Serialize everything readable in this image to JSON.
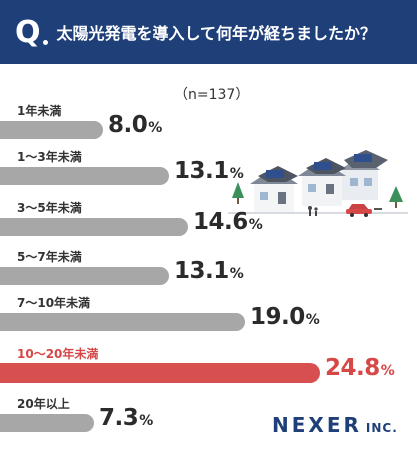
{
  "header": {
    "q_mark": "Q",
    "question": "太陽光発電を導入して何年が経ちましたか？"
  },
  "note": "（n=137）",
  "logo": {
    "main": "NEXER",
    "sub": "INC."
  },
  "colors": {
    "header": "#1f3f78",
    "bar": "#a7a7a7",
    "highlight": "#d84f4f"
  },
  "chart_data": {
    "type": "bar",
    "orientation": "horizontal",
    "unit": "%",
    "categories": [
      "1年未満",
      "1〜3年未満",
      "3〜5年未満",
      "5〜7年未満",
      "7〜10年未満",
      "10〜20年未満",
      "20年以上"
    ],
    "values": [
      8.0,
      13.1,
      14.6,
      13.1,
      19.0,
      24.8,
      7.3
    ],
    "value_labels": [
      "8.0",
      "13.1",
      "14.6",
      "13.1",
      "19.0",
      "24.8",
      "7.3"
    ],
    "highlight_index": 5
  }
}
